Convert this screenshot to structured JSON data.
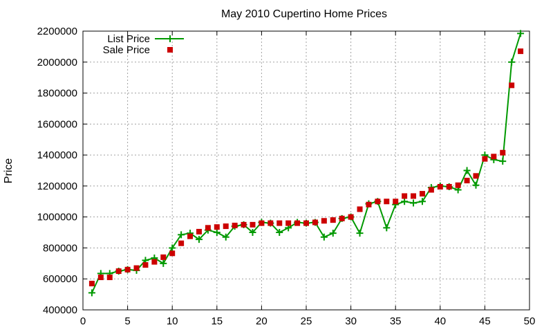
{
  "chart_data": {
    "type": "line",
    "title": "May 2010 Cupertino Home Prices",
    "xlabel": "",
    "ylabel": "Price",
    "xlim": [
      0,
      50
    ],
    "ylim": [
      400000,
      2200000
    ],
    "x_ticks": [
      0,
      5,
      10,
      15,
      20,
      25,
      30,
      35,
      40,
      45,
      50
    ],
    "y_ticks": [
      400000,
      600000,
      800000,
      1000000,
      1200000,
      1400000,
      1600000,
      1800000,
      2000000,
      2200000
    ],
    "grid": true,
    "legend_position": "top-left",
    "x": [
      1,
      2,
      3,
      4,
      5,
      6,
      7,
      8,
      9,
      10,
      11,
      12,
      13,
      14,
      15,
      16,
      17,
      18,
      19,
      20,
      21,
      22,
      23,
      24,
      25,
      26,
      27,
      28,
      29,
      30,
      31,
      32,
      33,
      34,
      35,
      36,
      37,
      38,
      39,
      40,
      41,
      42,
      43,
      44,
      45,
      46,
      47,
      48,
      49
    ],
    "series": [
      {
        "name": "List Price",
        "style": "line-plus",
        "color": "#009900",
        "values": [
          510000,
          635000,
          635000,
          650000,
          660000,
          655000,
          720000,
          735000,
          700000,
          800000,
          885000,
          895000,
          855000,
          915000,
          900000,
          870000,
          940000,
          950000,
          900000,
          965000,
          960000,
          900000,
          930000,
          965000,
          960000,
          965000,
          870000,
          895000,
          990000,
          1000000,
          895000,
          1085000,
          1100000,
          930000,
          1080000,
          1100000,
          1090000,
          1100000,
          1190000,
          1200000,
          1195000,
          1175000,
          1300000,
          1205000,
          1400000,
          1370000,
          1360000,
          2000000,
          2185000
        ]
      },
      {
        "name": "Sale Price",
        "style": "squares",
        "color": "#cc0000",
        "values": [
          570000,
          610000,
          610000,
          650000,
          660000,
          670000,
          690000,
          710000,
          740000,
          765000,
          830000,
          875000,
          905000,
          930000,
          935000,
          940000,
          945000,
          950000,
          950000,
          960000,
          960000,
          960000,
          960000,
          960000,
          960000,
          965000,
          975000,
          980000,
          990000,
          1000000,
          1050000,
          1080000,
          1100000,
          1100000,
          1100000,
          1135000,
          1135000,
          1150000,
          1175000,
          1195000,
          1195000,
          1205000,
          1235000,
          1265000,
          1375000,
          1390000,
          1415000,
          1850000,
          2070000
        ]
      }
    ]
  }
}
